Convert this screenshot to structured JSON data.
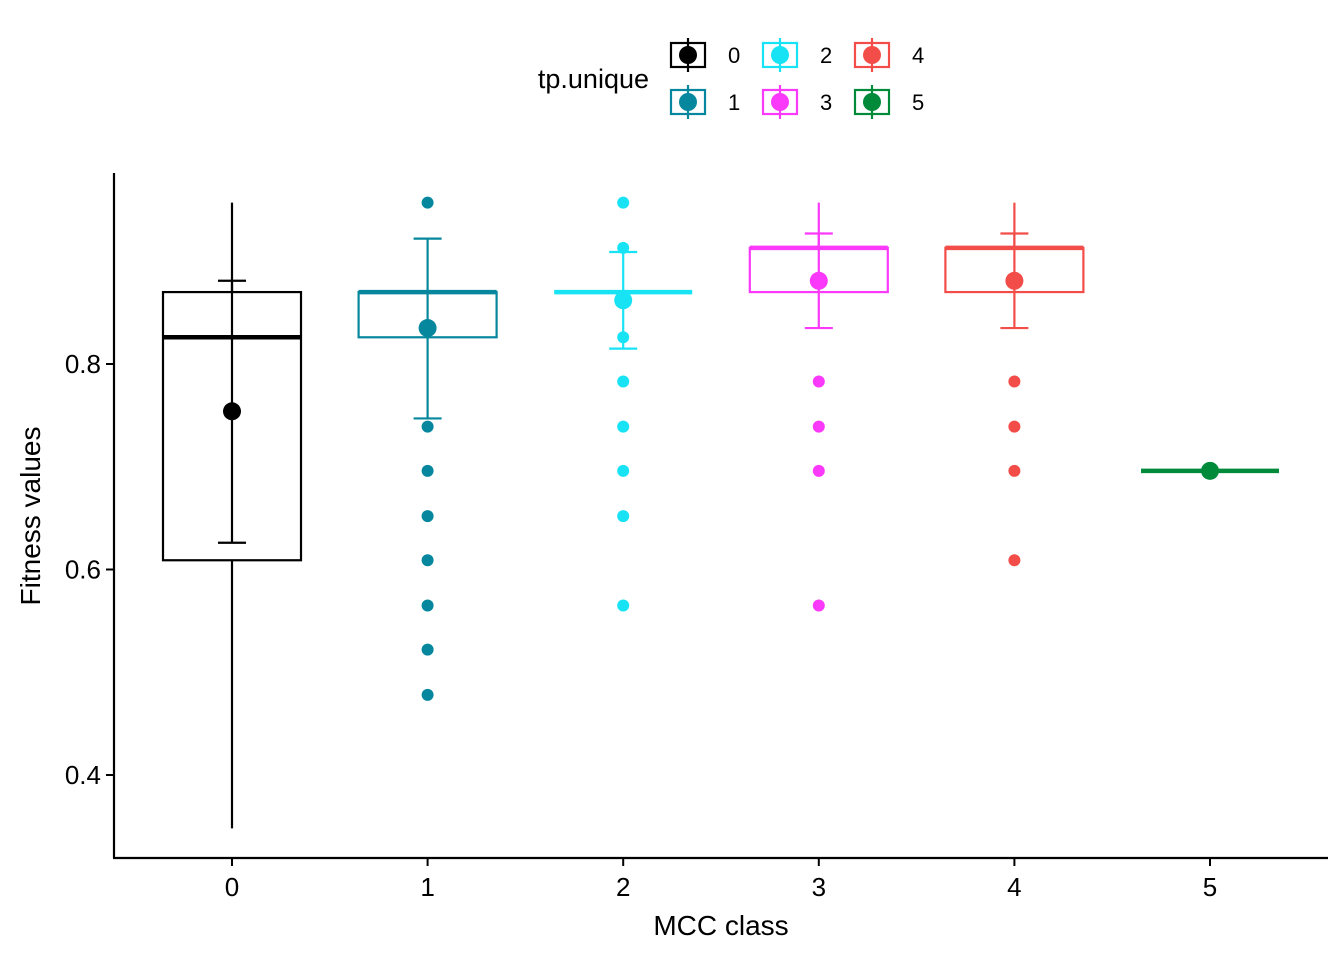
{
  "chart_data": {
    "type": "boxplot",
    "title": "",
    "xlabel": "MCC class",
    "ylabel": "Fitness values",
    "ylim": [
      0.32,
      0.985
    ],
    "y_ticks": [
      "0.4",
      "0.6",
      "0.8"
    ],
    "y_tick_values": [
      0.4,
      0.6,
      0.8
    ],
    "categories": [
      "0",
      "1",
      "2",
      "3",
      "4",
      "5"
    ],
    "grid": false,
    "legend": {
      "title": "tp.unique",
      "placement": "top",
      "entries": [
        "0",
        "1",
        "2",
        "3",
        "4",
        "5"
      ]
    },
    "colors": [
      "#000000",
      "#06879e",
      "#18e3f5",
      "#fa39fa",
      "#f34d49",
      "#008a3a"
    ],
    "boxes": [
      {
        "category": "0",
        "q1": 0.609,
        "median": 0.826,
        "q3": 0.87,
        "whisker_low": 0.348,
        "whisker_high": 0.957,
        "mean": 0.754,
        "err_low": 0.626,
        "err_high": 0.881,
        "outliers": []
      },
      {
        "category": "1",
        "q1": 0.826,
        "median": 0.87,
        "q3": 0.87,
        "whisker_low": 0.826,
        "whisker_high": 0.87,
        "mean": 0.835,
        "err_low": 0.747,
        "err_high": 0.922,
        "outliers": [
          0.957,
          0.739,
          0.696,
          0.652,
          0.609,
          0.565,
          0.522,
          0.478
        ]
      },
      {
        "category": "2",
        "q1": 0.87,
        "median": 0.87,
        "q3": 0.87,
        "whisker_low": 0.87,
        "whisker_high": 0.87,
        "mean": 0.862,
        "err_low": 0.815,
        "err_high": 0.909,
        "outliers": [
          0.957,
          0.913,
          0.826,
          0.783,
          0.739,
          0.696,
          0.652,
          0.565
        ]
      },
      {
        "category": "3",
        "q1": 0.87,
        "median": 0.913,
        "q3": 0.913,
        "whisker_low": 0.87,
        "whisker_high": 0.957,
        "mean": 0.881,
        "err_low": 0.835,
        "err_high": 0.927,
        "outliers": [
          0.783,
          0.739,
          0.696,
          0.565
        ]
      },
      {
        "category": "4",
        "q1": 0.87,
        "median": 0.913,
        "q3": 0.913,
        "whisker_low": 0.87,
        "whisker_high": 0.957,
        "mean": 0.881,
        "err_low": 0.835,
        "err_high": 0.927,
        "outliers": [
          0.783,
          0.739,
          0.696,
          0.609
        ]
      },
      {
        "category": "5",
        "q1": 0.696,
        "median": 0.696,
        "q3": 0.696,
        "whisker_low": 0.696,
        "whisker_high": 0.696,
        "mean": 0.696,
        "err_low": 0.696,
        "err_high": 0.696,
        "outliers": []
      }
    ]
  }
}
